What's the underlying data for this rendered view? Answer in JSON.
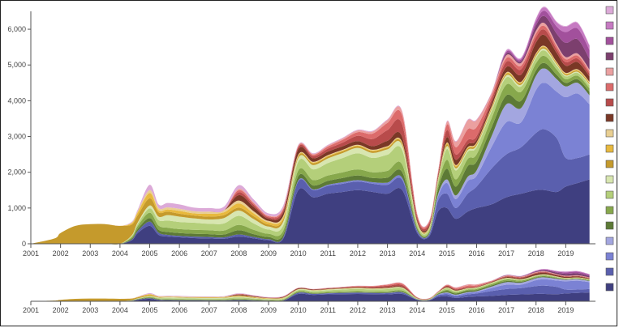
{
  "chart_data": [
    {
      "type": "area",
      "subtype": "stacked-streamgraph",
      "title": "",
      "xlabel": "",
      "ylabel": "",
      "xlim": [
        2001,
        2020
      ],
      "ylim": [
        0,
        6500
      ],
      "x_ticks": [
        "2001",
        "2002",
        "2003",
        "2004",
        "2005",
        "2006",
        "2007",
        "2008",
        "2009",
        "2010",
        "2011",
        "2012",
        "2013",
        "2014",
        "2015",
        "2016",
        "2017",
        "2018",
        "2019"
      ],
      "y_ticks": [
        "0",
        "1,000",
        "2,000",
        "3,000",
        "4,000",
        "5,000",
        "6,000"
      ],
      "x": [
        2001,
        2001.8,
        2002,
        2002.5,
        2003,
        2003.5,
        2004,
        2004.4,
        2004.6,
        2005,
        2005.3,
        2005.6,
        2006,
        2006.5,
        2007,
        2007.5,
        2008,
        2008.5,
        2009,
        2009.5,
        2010,
        2010.5,
        2011,
        2011.5,
        2012,
        2012.5,
        2013,
        2013.5,
        2014,
        2014.4,
        2014.7,
        2015,
        2015.3,
        2015.7,
        2016,
        2016.5,
        2017,
        2017.5,
        2018,
        2018.3,
        2018.7,
        2019,
        2019.4,
        2019.8
      ],
      "series": [
        {
          "color": "#3f3f80",
          "values": [
            0,
            0,
            0,
            0,
            0,
            0,
            0,
            100,
            300,
            500,
            250,
            200,
            180,
            160,
            150,
            140,
            200,
            150,
            100,
            150,
            1500,
            1300,
            1400,
            1450,
            1500,
            1450,
            1400,
            1500,
            300,
            200,
            900,
            1000,
            700,
            900,
            1000,
            1100,
            1300,
            1400,
            1500,
            1500,
            1450,
            1600,
            1700,
            1800
          ]
        },
        {
          "color": "#5a5fae",
          "values": [
            0,
            0,
            0,
            0,
            0,
            0,
            0,
            20,
            60,
            120,
            60,
            50,
            40,
            40,
            40,
            40,
            60,
            40,
            30,
            40,
            250,
            200,
            220,
            230,
            240,
            230,
            250,
            280,
            60,
            50,
            300,
            400,
            300,
            500,
            600,
            1000,
            1200,
            1300,
            1600,
            1700,
            1500,
            800,
            700,
            700
          ]
        },
        {
          "color": "#7b82d4",
          "values": [
            0,
            0,
            0,
            0,
            0,
            0,
            0,
            0,
            0,
            0,
            0,
            0,
            0,
            0,
            0,
            0,
            0,
            0,
            0,
            0,
            20,
            20,
            30,
            40,
            40,
            40,
            60,
            60,
            20,
            20,
            120,
            300,
            250,
            350,
            300,
            600,
            900,
            700,
            1200,
            1300,
            1300,
            1700,
            1800,
            1400
          ]
        },
        {
          "color": "#a3a6e0",
          "values": [
            0,
            0,
            0,
            0,
            0,
            0,
            0,
            0,
            0,
            0,
            0,
            0,
            0,
            0,
            0,
            0,
            0,
            0,
            0,
            0,
            0,
            0,
            0,
            0,
            0,
            0,
            0,
            0,
            0,
            0,
            50,
            100,
            100,
            120,
            150,
            300,
            500,
            400,
            400,
            400,
            350,
            300,
            300,
            250
          ]
        },
        {
          "color": "#5d7a36",
          "values": [
            0,
            0,
            0,
            0,
            0,
            0,
            0,
            30,
            60,
            100,
            80,
            80,
            80,
            80,
            80,
            80,
            120,
            80,
            60,
            80,
            120,
            110,
            110,
            120,
            130,
            120,
            140,
            160,
            40,
            30,
            150,
            300,
            250,
            300,
            250,
            250,
            250,
            200,
            150,
            150,
            120,
            100,
            100,
            100
          ]
        },
        {
          "color": "#87a84c",
          "values": [
            0,
            0,
            0,
            0,
            0,
            0,
            0,
            40,
            80,
            150,
            120,
            120,
            110,
            110,
            110,
            110,
            150,
            120,
            90,
            110,
            160,
            150,
            150,
            160,
            170,
            160,
            190,
            210,
            50,
            40,
            120,
            250,
            200,
            200,
            200,
            250,
            300,
            250,
            200,
            200,
            150,
            100,
            100,
            100
          ]
        },
        {
          "color": "#b4cf7a",
          "values": [
            0,
            0,
            0,
            0,
            0,
            0,
            0,
            30,
            60,
            120,
            150,
            200,
            200,
            200,
            180,
            200,
            250,
            180,
            120,
            150,
            250,
            300,
            350,
            400,
            450,
            400,
            450,
            400,
            80,
            60,
            100,
            300,
            250,
            200,
            200,
            200,
            200,
            150,
            150,
            150,
            100,
            80,
            80,
            80
          ]
        },
        {
          "color": "#d8e6b0",
          "values": [
            0,
            0,
            0,
            0,
            0,
            0,
            0,
            20,
            40,
            80,
            100,
            150,
            150,
            120,
            120,
            150,
            150,
            120,
            80,
            100,
            100,
            120,
            130,
            140,
            150,
            140,
            150,
            130,
            30,
            20,
            30,
            80,
            60,
            50,
            50,
            50,
            60,
            50,
            50,
            50,
            40,
            30,
            30,
            30
          ]
        },
        {
          "color": "#c59a2c",
          "values": [
            0,
            150,
            300,
            500,
            550,
            550,
            500,
            300,
            200,
            200,
            120,
            100,
            80,
            80,
            80,
            80,
            80,
            80,
            60,
            60,
            50,
            50,
            50,
            50,
            50,
            50,
            50,
            50,
            20,
            20,
            30,
            50,
            40,
            40,
            40,
            40,
            40,
            40,
            40,
            40,
            30,
            30,
            30,
            30
          ]
        },
        {
          "color": "#e8b93e",
          "values": [
            0,
            0,
            0,
            0,
            0,
            0,
            0,
            40,
            80,
            150,
            60,
            60,
            80,
            60,
            80,
            80,
            120,
            80,
            60,
            60,
            20,
            20,
            20,
            20,
            20,
            20,
            20,
            20,
            10,
            10,
            10,
            30,
            30,
            20,
            20,
            20,
            20,
            20,
            20,
            20,
            20,
            20,
            20,
            20
          ]
        },
        {
          "color": "#e9cf92",
          "values": [
            0,
            0,
            0,
            0,
            0,
            0,
            0,
            20,
            40,
            80,
            60,
            60,
            60,
            60,
            60,
            60,
            80,
            60,
            40,
            40,
            20,
            20,
            20,
            20,
            20,
            20,
            20,
            20,
            10,
            10,
            10,
            20,
            20,
            20,
            20,
            20,
            20,
            20,
            20,
            20,
            20,
            20,
            20,
            20
          ]
        },
        {
          "color": "#7a3826",
          "values": [
            0,
            0,
            0,
            0,
            0,
            0,
            0,
            0,
            0,
            0,
            0,
            0,
            0,
            0,
            0,
            0,
            150,
            120,
            60,
            100,
            150,
            100,
            100,
            100,
            100,
            100,
            150,
            150,
            50,
            40,
            50,
            150,
            150,
            80,
            80,
            100,
            150,
            200,
            300,
            300,
            250,
            200,
            200,
            150
          ]
        },
        {
          "color": "#b84b4b",
          "values": [
            0,
            0,
            0,
            0,
            0,
            0,
            0,
            0,
            0,
            0,
            0,
            0,
            0,
            0,
            0,
            0,
            80,
            60,
            40,
            60,
            60,
            60,
            80,
            100,
            150,
            200,
            300,
            350,
            80,
            60,
            60,
            200,
            150,
            120,
            100,
            100,
            150,
            150,
            150,
            150,
            100,
            100,
            100,
            80
          ]
        },
        {
          "color": "#dc6b6b",
          "values": [
            0,
            0,
            0,
            0,
            0,
            0,
            0,
            0,
            0,
            0,
            0,
            0,
            0,
            0,
            0,
            0,
            60,
            40,
            30,
            40,
            30,
            40,
            60,
            80,
            100,
            150,
            200,
            250,
            60,
            50,
            50,
            150,
            200,
            300,
            250,
            100,
            100,
            100,
            100,
            100,
            80,
            80,
            80,
            60
          ]
        },
        {
          "color": "#eba0a0",
          "values": [
            0,
            0,
            0,
            0,
            0,
            0,
            0,
            0,
            0,
            0,
            0,
            0,
            0,
            0,
            0,
            0,
            40,
            30,
            20,
            30,
            20,
            20,
            30,
            40,
            50,
            60,
            80,
            100,
            30,
            20,
            30,
            80,
            150,
            250,
            200,
            80,
            80,
            80,
            80,
            80,
            60,
            60,
            60,
            50
          ]
        },
        {
          "color": "#7c3f6e",
          "values": [
            0,
            0,
            0,
            0,
            0,
            0,
            0,
            0,
            0,
            0,
            0,
            0,
            0,
            0,
            0,
            0,
            0,
            0,
            0,
            0,
            0,
            0,
            0,
            0,
            0,
            0,
            0,
            0,
            0,
            0,
            0,
            0,
            0,
            0,
            0,
            0,
            50,
            50,
            150,
            200,
            300,
            400,
            400,
            300
          ]
        },
        {
          "color": "#a2509c",
          "values": [
            0,
            0,
            0,
            0,
            0,
            0,
            0,
            0,
            0,
            0,
            0,
            0,
            0,
            0,
            0,
            0,
            0,
            0,
            0,
            0,
            0,
            0,
            0,
            0,
            0,
            0,
            0,
            0,
            0,
            0,
            0,
            0,
            0,
            0,
            0,
            0,
            50,
            50,
            100,
            150,
            200,
            300,
            300,
            250
          ]
        },
        {
          "color": "#c67ac2",
          "values": [
            0,
            0,
            0,
            0,
            0,
            0,
            0,
            0,
            0,
            0,
            0,
            0,
            0,
            0,
            0,
            0,
            0,
            0,
            0,
            0,
            0,
            0,
            0,
            0,
            0,
            0,
            0,
            0,
            0,
            0,
            0,
            0,
            0,
            0,
            0,
            0,
            30,
            30,
            80,
            100,
            120,
            150,
            150,
            120
          ]
        },
        {
          "color": "#dcaad8",
          "values": [
            0,
            0,
            0,
            0,
            0,
            0,
            0,
            20,
            40,
            150,
            100,
            120,
            120,
            100,
            100,
            100,
            100,
            80,
            60,
            60,
            20,
            20,
            20,
            20,
            20,
            20,
            20,
            20,
            10,
            10,
            10,
            20,
            20,
            20,
            20,
            20,
            20,
            20,
            20,
            20,
            20,
            20,
            20,
            20
          ]
        }
      ],
      "legend_position": "right",
      "legend_colors": [
        "#dcaad8",
        "#c67ac2",
        "#a2509c",
        "#7c3f6e",
        "#eba0a0",
        "#dc6b6b",
        "#b84b4b",
        "#7a3826",
        "#e9cf92",
        "#e8b93e",
        "#c59a2c",
        "#d8e6b0",
        "#b4cf7a",
        "#87a84c",
        "#5d7a36",
        "#a3a6e0",
        "#7b82d4",
        "#5a5fae",
        "#3f3f80"
      ]
    },
    {
      "type": "area",
      "subtype": "overview-brush",
      "xlim": [
        2001,
        2020
      ],
      "x_ticks": [
        "2001",
        "2002",
        "2003",
        "2004",
        "2005",
        "2006",
        "2007",
        "2008",
        "2009",
        "2010",
        "2011",
        "2012",
        "2013",
        "2014",
        "2015",
        "2016",
        "2017",
        "2018",
        "2019"
      ]
    }
  ]
}
